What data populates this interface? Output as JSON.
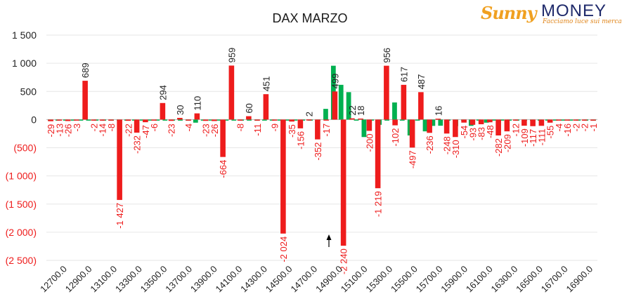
{
  "logo": {
    "brand_left": "Sunny",
    "brand_right": "MONEY",
    "tagline": "Facciamo luce sui mercati"
  },
  "colors": {
    "negative": "#ee1c1c",
    "positive": "#00b050",
    "label_pos": "#222222",
    "label_neg": "#ee1c1c",
    "grid": "#e6e6e6"
  },
  "chart_data": {
    "type": "bar",
    "title": "DAX MARZO",
    "xlabel": "",
    "ylabel": "",
    "ylim": [
      -2500,
      1500
    ],
    "yticks": [
      1500,
      1000,
      500,
      0,
      -500,
      -1000,
      -1500,
      -2000,
      -2500
    ],
    "ytick_labels": [
      "1 500",
      "1 000",
      "500",
      "0",
      "(500)",
      "(1 000)",
      "(1 500)",
      "(2 000)",
      "(2 500)"
    ],
    "x_start": 12700,
    "x_step": 50,
    "xtick_labels": [
      "12700.0",
      "12900.0",
      "13100.0",
      "13300.0",
      "13500.0",
      "13700.0",
      "13900.0",
      "14100.0",
      "14300.0",
      "14500.0",
      "14700.0",
      "14900.0",
      "15100.0",
      "15300.0",
      "15500.0",
      "15700.0",
      "15900.0",
      "16100.0",
      "16300.0",
      "16500.0",
      "16700.0",
      "16900.0"
    ],
    "grid": true,
    "legend": "none",
    "series": [
      {
        "name": "",
        "color": "#ee1c1c",
        "values": [
          -29,
          -13,
          -26,
          -3,
          689,
          -2,
          -14,
          -8,
          -1427,
          -22,
          -232,
          -47,
          -6,
          294,
          -23,
          30,
          -4,
          110,
          -23,
          -26,
          -664,
          959,
          -8,
          60,
          -11,
          451,
          -9,
          -2024,
          -35,
          -156,
          2,
          -352,
          -17,
          499,
          -2240,
          22,
          18,
          -200,
          -1219,
          956,
          -102,
          617,
          -497,
          487,
          -236,
          16,
          -248,
          -310,
          -54,
          -93,
          -83,
          -48,
          -282,
          -209,
          -12,
          -109,
          -117,
          -111,
          -55,
          -4,
          -16,
          -2,
          -2,
          -1
        ]
      },
      {
        "name": "",
        "color": "#00b050",
        "values": [
          -3,
          -2,
          -2,
          -2,
          -2,
          -2,
          -2,
          -2,
          -1,
          -2,
          -2,
          -2,
          -2,
          -2,
          -2,
          -2,
          -2,
          -2,
          -2,
          -55,
          -2,
          -2,
          -2,
          -2,
          -2,
          -2,
          -2,
          -2,
          -2,
          -2,
          -2,
          -2,
          -2,
          -2,
          -2,
          -2,
          190,
          956,
          617,
          487,
          -2,
          -310,
          -2,
          -93,
          -2,
          304,
          -2,
          -282,
          -2,
          -209,
          -112,
          -109,
          -2,
          -117,
          -2,
          -111,
          -2,
          -55,
          -4,
          -2,
          -16,
          -2,
          -2,
          -2,
          -2,
          -2,
          -2,
          -1,
          -2,
          -2,
          -2,
          -1
        ]
      }
    ]
  }
}
